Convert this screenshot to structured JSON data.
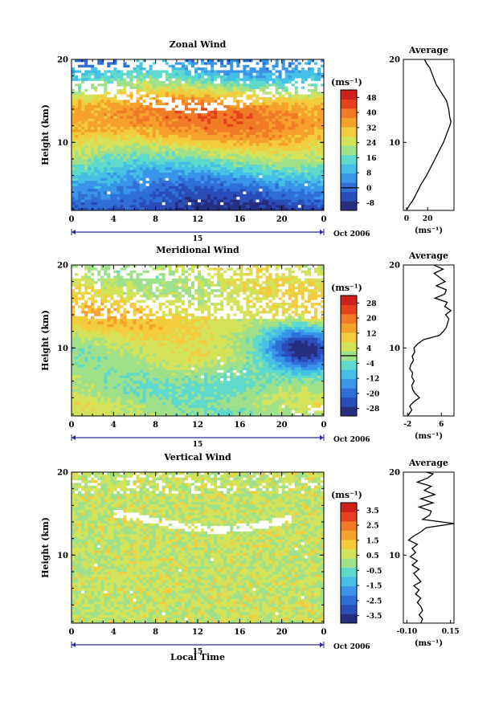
{
  "x_label": "Local Time",
  "y_label": "Height (km)",
  "unit_label": "(ms⁻¹)",
  "date_day": "15",
  "date_month": "Oct 2006",
  "chart_data": [
    {
      "type": "heatmap",
      "title": "Zonal Wind",
      "xlabel": "Local Time",
      "ylabel": "Height (km)",
      "x_ticks": [
        "0",
        "4",
        "8",
        "12",
        "16",
        "20",
        "0"
      ],
      "xlim": [
        0,
        24
      ],
      "y_ticks": [
        "10",
        "20"
      ],
      "ylim": [
        1.8,
        20
      ],
      "colorbar": {
        "label": "(ms⁻¹)",
        "ticks": [
          "-8",
          "0",
          "8",
          "16",
          "24",
          "32",
          "40",
          "48"
        ],
        "range": [
          -12,
          52
        ],
        "colors": [
          "#262e82",
          "#2a4db8",
          "#2f6fd8",
          "#3a95e8",
          "#45bfe6",
          "#5fd9cc",
          "#9fe08a",
          "#d4e25a",
          "#f2cc3c",
          "#f5a12c",
          "#f07a26",
          "#e5411e",
          "#cf1f1a"
        ],
        "zero_line": 0
      },
      "field": {
        "kind": "zonal",
        "profile_heights": [
          2,
          3,
          4,
          5,
          6,
          7,
          8,
          9,
          10,
          11,
          12,
          13,
          14,
          15,
          16,
          17,
          18,
          19,
          20
        ],
        "profile_values": [
          -6,
          -3,
          0,
          4,
          9,
          14,
          19,
          24,
          29,
          34,
          37,
          38,
          37,
          33,
          26,
          18,
          12,
          8,
          6
        ]
      },
      "average_profile": {
        "title": "Average",
        "xlabel": "(ms⁻¹)",
        "x_ticks": [
          "0",
          "20"
        ],
        "xlim": [
          -3,
          45
        ],
        "y_ticks": [
          "10",
          "20"
        ],
        "heights": [
          1.8,
          2.5,
          3,
          4,
          5,
          6,
          7,
          8,
          9,
          10,
          11,
          12,
          12.5,
          13,
          14,
          15,
          16,
          17,
          18,
          19,
          19.5,
          20
        ],
        "values": [
          0,
          3,
          6,
          10,
          14,
          19,
          23,
          27,
          31,
          35,
          38,
          41,
          42,
          41,
          40,
          38,
          33,
          28,
          25,
          22,
          19,
          17
        ]
      }
    },
    {
      "type": "heatmap",
      "title": "Meridional Wind",
      "xlabel": "Local Time",
      "ylabel": "Height (km)",
      "x_ticks": [
        "0",
        "4",
        "8",
        "12",
        "16",
        "20",
        "0"
      ],
      "xlim": [
        0,
        24
      ],
      "y_ticks": [
        "10",
        "20"
      ],
      "ylim": [
        1.8,
        20
      ],
      "colorbar": {
        "label": "(ms⁻¹)",
        "ticks": [
          "-28",
          "-20",
          "-12",
          "-4",
          "4",
          "12",
          "20",
          "28"
        ],
        "range": [
          -32,
          32
        ],
        "colors": [
          "#262e82",
          "#2a4db8",
          "#2f6fd8",
          "#3a95e8",
          "#45bfe6",
          "#5fd9cc",
          "#9fe08a",
          "#d4e25a",
          "#f2cc3c",
          "#f5a12c",
          "#f07a26",
          "#e5411e",
          "#cf1f1a"
        ],
        "zero_line": 0
      },
      "field": {
        "kind": "meridional",
        "profile_heights": [
          2,
          3,
          4,
          5,
          6,
          7,
          8,
          9,
          10,
          11,
          12,
          13,
          14,
          15,
          16,
          17,
          18,
          19,
          20
        ],
        "profile_values": [
          1,
          2,
          1,
          0,
          2,
          3,
          3,
          3,
          2,
          4,
          6,
          8,
          9,
          8,
          6,
          5,
          4,
          3,
          4
        ]
      },
      "average_profile": {
        "title": "Average",
        "xlabel": "(ms⁻¹)",
        "x_ticks": [
          "-2",
          "6"
        ],
        "xlim": [
          -3,
          9
        ],
        "y_ticks": [
          "10",
          "20"
        ],
        "heights": [
          1.8,
          2.5,
          3,
          3.5,
          4,
          4.5,
          5,
          5.5,
          6,
          6.5,
          7,
          7.5,
          8,
          8.5,
          9,
          9.5,
          10,
          10.5,
          11,
          11.5,
          12,
          12.5,
          13,
          13.5,
          14,
          14.5,
          15,
          15.5,
          16,
          16.5,
          17,
          17.5,
          18,
          18.5,
          19,
          19.5,
          20
        ],
        "values": [
          -2,
          -1,
          -1.5,
          -0.5,
          0.8,
          -0.2,
          -0.8,
          -1,
          -0.4,
          -1,
          -0.8,
          -1.5,
          -1.2,
          -0.6,
          -0.9,
          -0.3,
          -0.5,
          0.4,
          1.8,
          5.5,
          6.5,
          7.2,
          7.5,
          7.8,
          7,
          8.3,
          6.8,
          7.4,
          4.5,
          6.8,
          7.2,
          4.8,
          6.9,
          5.6,
          4.3,
          6.4,
          4.2
        ]
      }
    },
    {
      "type": "heatmap",
      "title": "Vertical Wind",
      "xlabel": "Local Time",
      "ylabel": "Height (km)",
      "x_ticks": [
        "0",
        "4",
        "8",
        "12",
        "16",
        "20",
        "0"
      ],
      "xlim": [
        0,
        24
      ],
      "y_ticks": [
        "10",
        "20"
      ],
      "ylim": [
        1.8,
        20
      ],
      "colorbar": {
        "label": "(ms⁻¹)",
        "ticks": [
          "-3.5",
          "-2.5",
          "-1.5",
          "-0.5",
          "0.5",
          "1.5",
          "2.5",
          "3.5"
        ],
        "range": [
          -4,
          4
        ],
        "colors": [
          "#262e82",
          "#2a4db8",
          "#2f6fd8",
          "#3a95e8",
          "#45bfe6",
          "#5fd9cc",
          "#9fe08a",
          "#d4e25a",
          "#f2cc3c",
          "#f5a12c",
          "#f07a26",
          "#e5411e",
          "#cf1f1a"
        ],
        "zero_line": null
      },
      "field": {
        "kind": "vertical",
        "profile_heights": [
          2,
          6,
          10,
          14,
          18,
          20
        ],
        "profile_values": [
          0,
          0,
          0,
          0,
          0,
          0
        ]
      },
      "average_profile": {
        "title": "Average",
        "xlabel": "(ms⁻¹)",
        "x_ticks": [
          "-0.10",
          "0.15"
        ],
        "xlim": [
          -0.12,
          0.17
        ],
        "y_ticks": [
          "10",
          "20"
        ],
        "heights": [
          1.8,
          2.3,
          2.8,
          3.3,
          3.8,
          4.3,
          4.8,
          5.3,
          5.8,
          6.3,
          6.8,
          7.3,
          7.8,
          8.3,
          8.8,
          9.3,
          9.8,
          10.3,
          10.8,
          11.3,
          11.8,
          12.3,
          12.8,
          13.3,
          13.8,
          14.3,
          14.8,
          15.3,
          15.8,
          16.3,
          16.8,
          17.3,
          17.8,
          18.3,
          18.8,
          19.3,
          19.8,
          20
        ],
        "values": [
          -0.02,
          -0.01,
          -0.03,
          -0.01,
          -0.02,
          -0.04,
          -0.02,
          -0.05,
          -0.03,
          -0.06,
          -0.02,
          -0.04,
          -0.06,
          -0.03,
          -0.07,
          -0.04,
          -0.08,
          -0.05,
          -0.07,
          -0.04,
          -0.09,
          -0.06,
          -0.02,
          0.01,
          0.17,
          -0.01,
          0.03,
          0.04,
          -0.03,
          0.05,
          -0.02,
          0.06,
          0.0,
          0.04,
          -0.04,
          0.02,
          0.05,
          0.01
        ]
      }
    }
  ]
}
